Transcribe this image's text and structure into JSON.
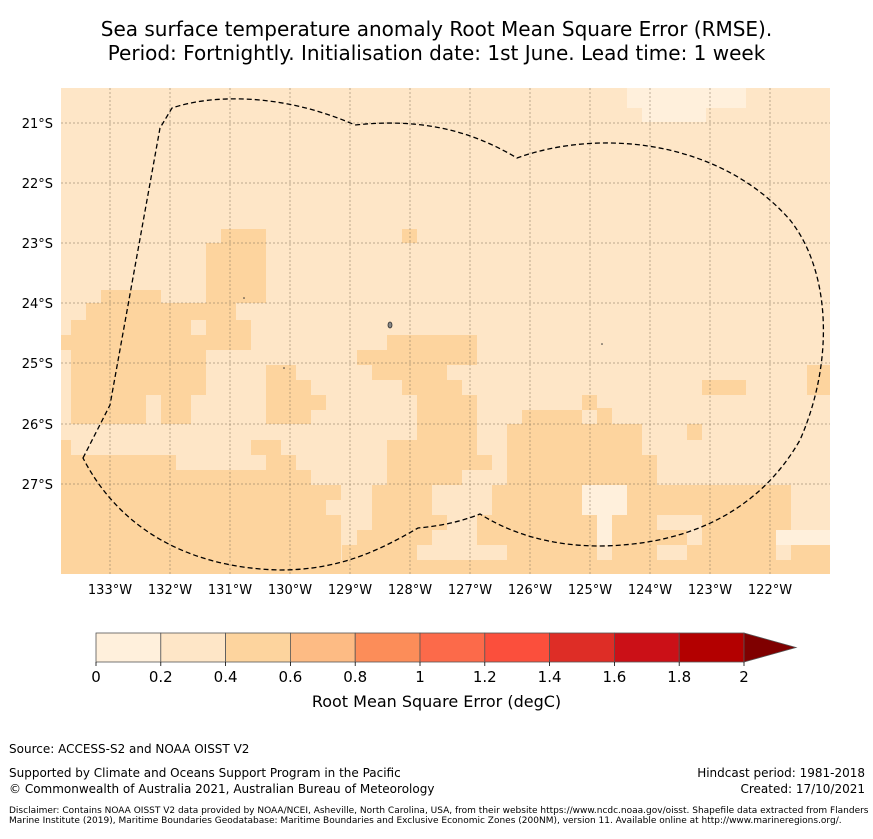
{
  "title_line1": "Sea surface temperature anomaly Root Mean Square Error (RMSE).",
  "title_line2": "Period: Fortnightly. Initialisation date: 1st June. Lead time: 1 week",
  "map": {
    "lon_ticks": [
      "133°W",
      "132°W",
      "131°W",
      "130°W",
      "129°W",
      "128°W",
      "127°W",
      "126°W",
      "125°W",
      "124°W",
      "123°W",
      "122°W"
    ],
    "lat_ticks": [
      "21°S",
      "22°S",
      "23°S",
      "24°S",
      "25°S",
      "26°S",
      "27°S"
    ],
    "gridlines": true,
    "colors": {
      "c0": "#fff0dc",
      "c1": "#fee6c7",
      "c2": "#fdd49e"
    }
  },
  "colorbar": {
    "label": "Root Mean Square Error (degC)",
    "tick_labels": [
      "0",
      "0.2",
      "0.4",
      "0.6",
      "0.8",
      "1",
      "1.2",
      "1.4",
      "1.6",
      "1.8",
      "2"
    ],
    "colors": [
      "#fff0dc",
      "#fee6c7",
      "#fdd49e",
      "#fdbb84",
      "#fc8d59",
      "#fc6a4a",
      "#fb4f3c",
      "#de2d26",
      "#cb1017",
      "#b30000"
    ],
    "extend_color": "#7f0000"
  },
  "footer": {
    "source": "Source: ACCESS-S2 and NOAA OISST V2",
    "support": "Supported by Climate and Oceans Support Program in the Pacific",
    "copyright": "© Commonwealth of Australia 2021, Australian Bureau of Meteorology",
    "hindcast": "Hindcast period: 1981-2018",
    "created": "Created: 17/10/2021",
    "disclaimer": "Disclaimer: Contains NOAA OISST V2 data provided by NOAA/NCEI, Asheville, North Carolina, USA, from their website https://www.ncdc.noaa.gov/oisst. Shapefile data extracted from Flanders Marine Institute (2019), Maritime Boundaries Geodatabase: Maritime Boundaries and Exclusive Economic Zones (200NM), version 11. Available online at http://www.marineregions.org/."
  }
}
